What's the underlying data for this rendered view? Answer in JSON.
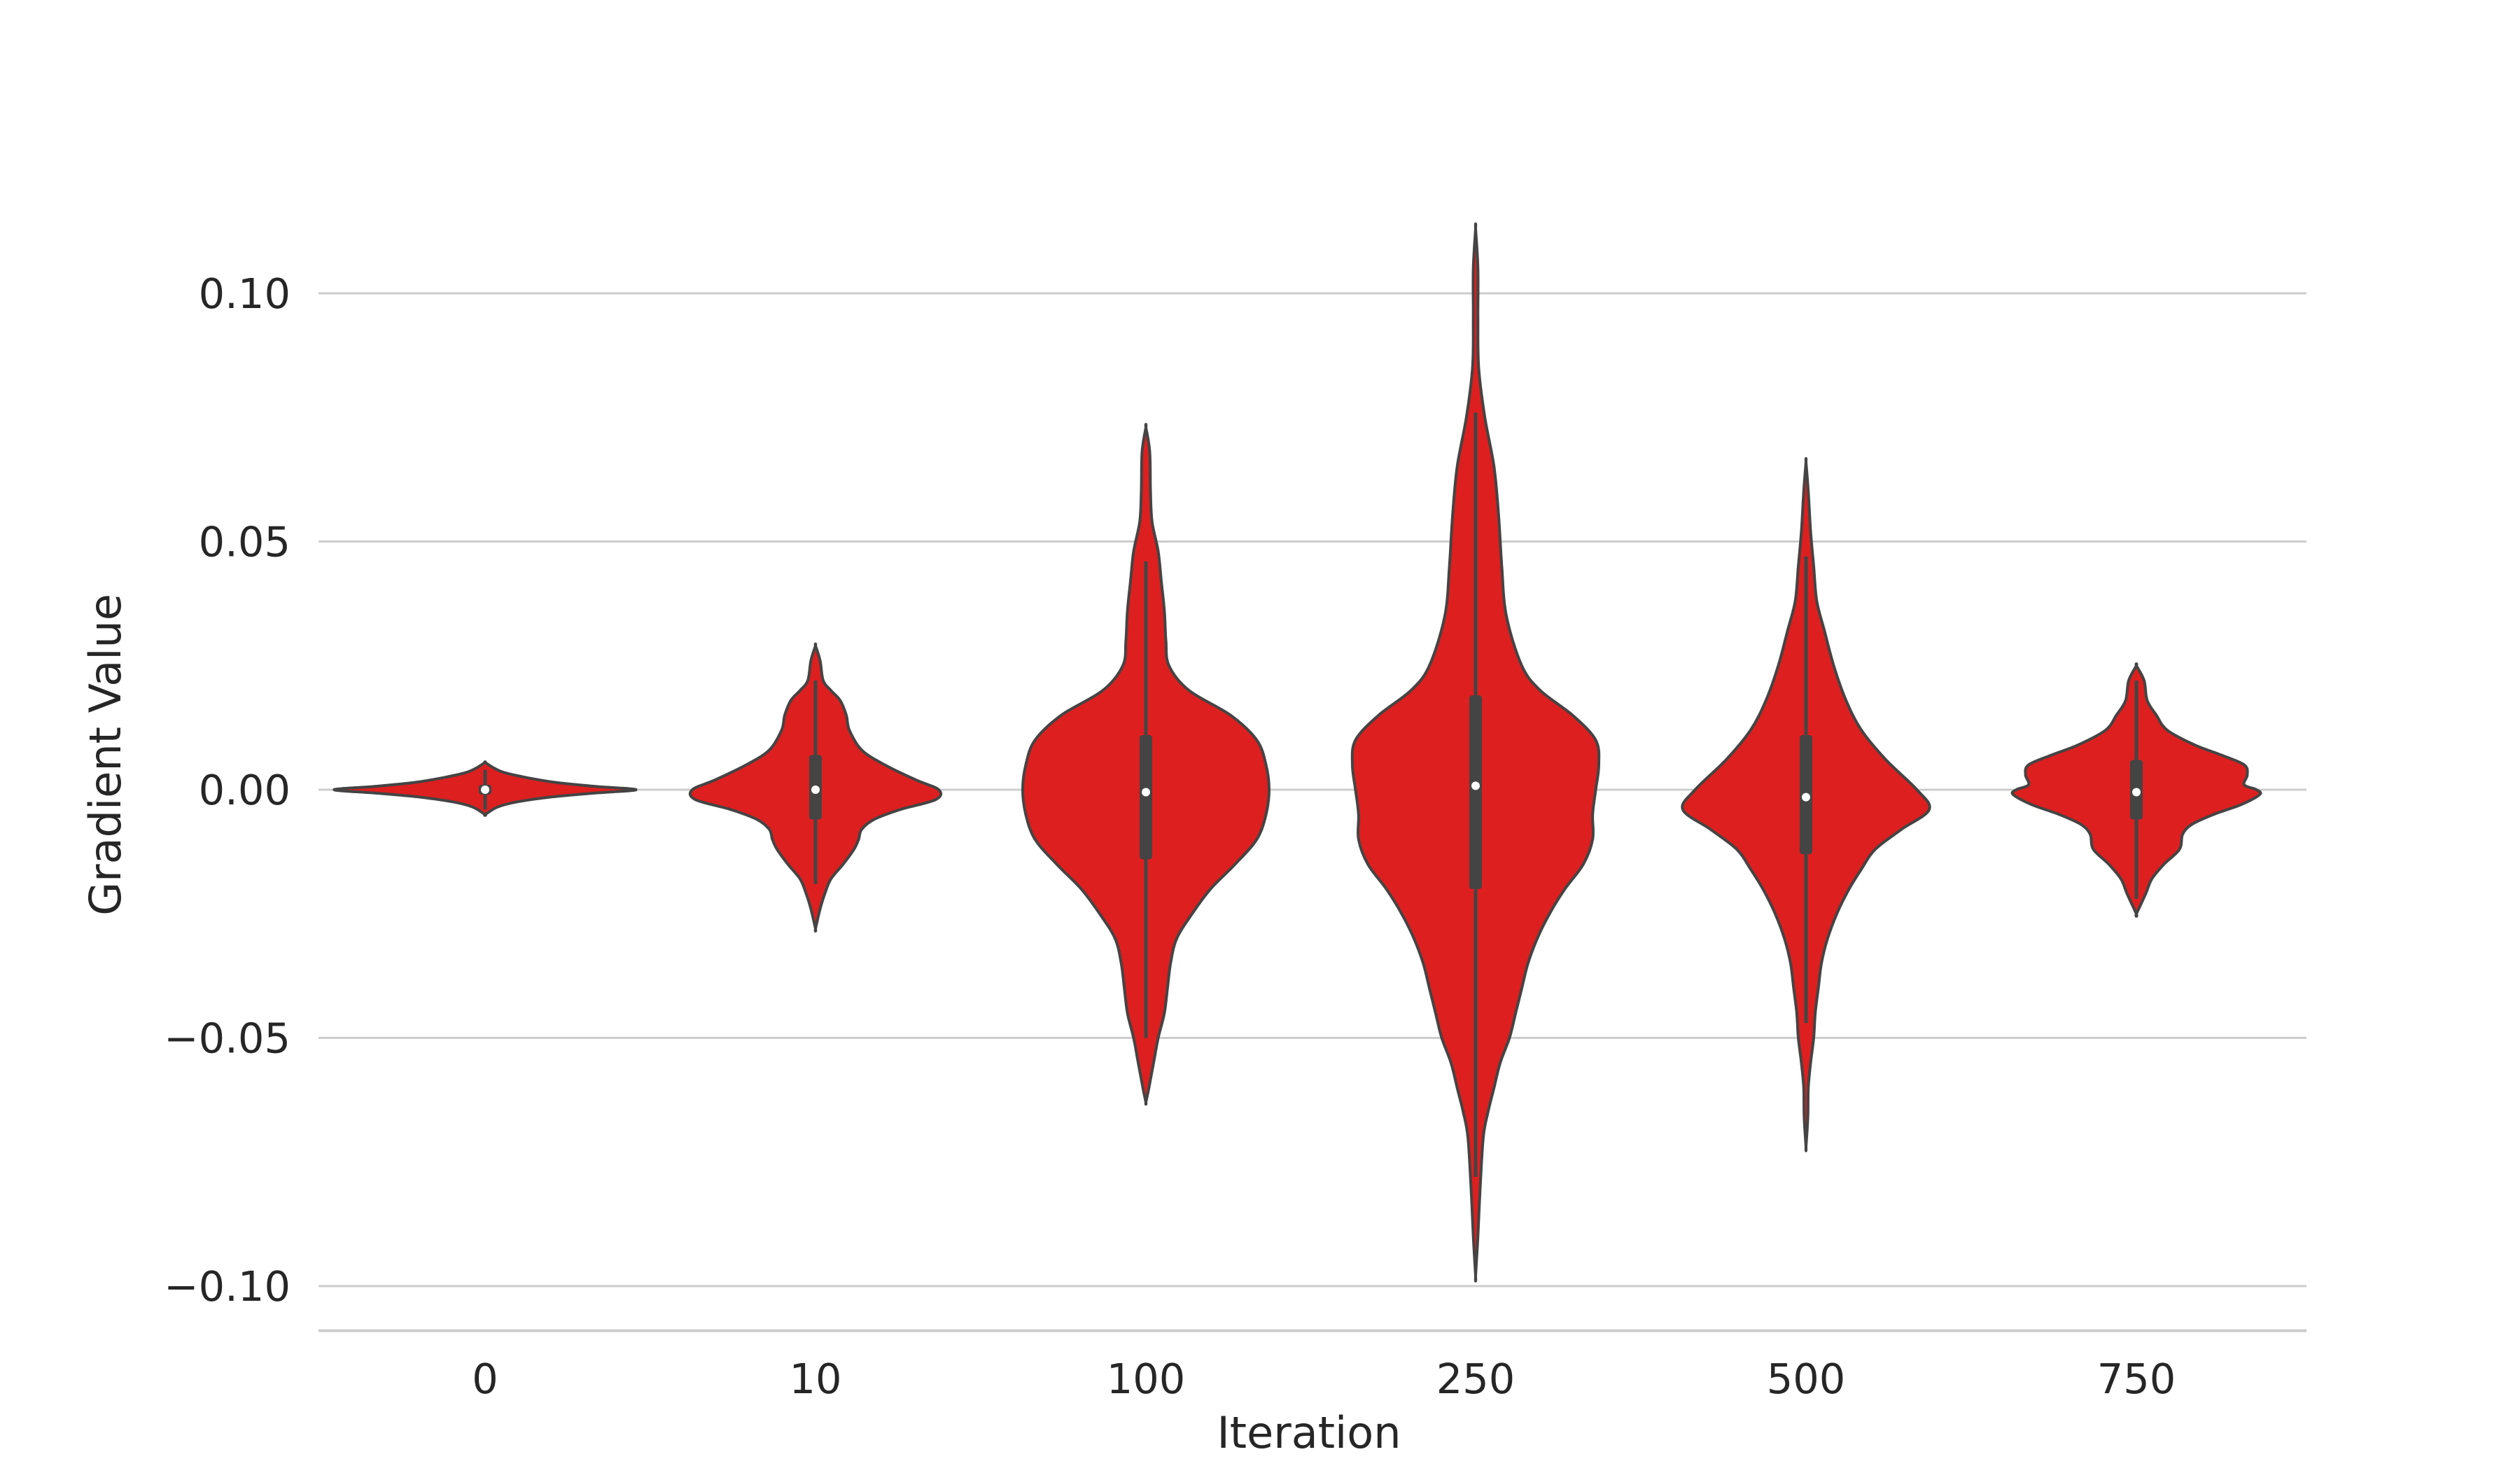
{
  "chart_data": {
    "type": "violin",
    "title": "",
    "xlabel": "Iteration",
    "ylabel": "Gradient Value",
    "categories": [
      "0",
      "10",
      "100",
      "250",
      "500",
      "750"
    ],
    "yticks": [
      0.1,
      0.05,
      0.0,
      -0.05,
      -0.1
    ],
    "ytick_labels": [
      "0.10",
      "0.05",
      "0.00",
      "−0.05",
      "−0.10"
    ],
    "ylim": [
      -0.109,
      0.12
    ],
    "grid": "horizontal",
    "fill_color": "#dd1f1f",
    "line_color": "#444444",
    "grid_color": "#cccccc",
    "violins": [
      {
        "category": "0",
        "ymin": -0.005,
        "ymax": 0.0055,
        "q1": -0.001,
        "median": 0.0,
        "q3": 0.001,
        "whisker_low": -0.004,
        "whisker_high": 0.004,
        "profile": [
          [
            0.0055,
            0.0
          ],
          [
            0.0045,
            0.05
          ],
          [
            0.0035,
            0.12
          ],
          [
            0.0025,
            0.26
          ],
          [
            0.0015,
            0.45
          ],
          [
            0.0007,
            0.7
          ],
          [
            0.0,
            0.98
          ],
          [
            -0.0007,
            0.7
          ],
          [
            -0.0015,
            0.42
          ],
          [
            -0.0025,
            0.2
          ],
          [
            -0.0035,
            0.08
          ],
          [
            -0.005,
            0.0
          ]
        ]
      },
      {
        "category": "10",
        "ymin": -0.028,
        "ymax": 0.029,
        "q1": -0.006,
        "median": 0.0,
        "q3": 0.007,
        "whisker_low": -0.019,
        "whisker_high": 0.022,
        "profile": [
          [
            0.029,
            0.0
          ],
          [
            0.026,
            0.03
          ],
          [
            0.022,
            0.05
          ],
          [
            0.02,
            0.1
          ],
          [
            0.018,
            0.16
          ],
          [
            0.015,
            0.2
          ],
          [
            0.012,
            0.22
          ],
          [
            0.008,
            0.3
          ],
          [
            0.005,
            0.45
          ],
          [
            0.002,
            0.65
          ],
          [
            0.0,
            0.8
          ],
          [
            -0.002,
            0.78
          ],
          [
            -0.004,
            0.55
          ],
          [
            -0.006,
            0.38
          ],
          [
            -0.008,
            0.3
          ],
          [
            -0.01,
            0.28
          ],
          [
            -0.012,
            0.25
          ],
          [
            -0.015,
            0.18
          ],
          [
            -0.018,
            0.1
          ],
          [
            -0.021,
            0.06
          ],
          [
            -0.024,
            0.03
          ],
          [
            -0.028,
            0.0
          ]
        ]
      },
      {
        "category": "100",
        "ymin": -0.063,
        "ymax": 0.073,
        "q1": -0.014,
        "median": -0.0005,
        "q3": 0.011,
        "whisker_low": -0.05,
        "whisker_high": 0.046,
        "profile": [
          [
            0.073,
            0.0
          ],
          [
            0.068,
            0.025
          ],
          [
            0.06,
            0.03
          ],
          [
            0.054,
            0.04
          ],
          [
            0.048,
            0.08
          ],
          [
            0.042,
            0.1
          ],
          [
            0.036,
            0.12
          ],
          [
            0.03,
            0.13
          ],
          [
            0.025,
            0.15
          ],
          [
            0.02,
            0.28
          ],
          [
            0.015,
            0.55
          ],
          [
            0.01,
            0.72
          ],
          [
            0.005,
            0.78
          ],
          [
            0.0,
            0.8
          ],
          [
            -0.005,
            0.78
          ],
          [
            -0.01,
            0.72
          ],
          [
            -0.015,
            0.58
          ],
          [
            -0.02,
            0.42
          ],
          [
            -0.025,
            0.3
          ],
          [
            -0.03,
            0.2
          ],
          [
            -0.035,
            0.16
          ],
          [
            -0.04,
            0.14
          ],
          [
            -0.045,
            0.12
          ],
          [
            -0.05,
            0.08
          ],
          [
            -0.055,
            0.05
          ],
          [
            -0.06,
            0.02
          ],
          [
            -0.063,
            0.0
          ]
        ]
      },
      {
        "category": "250",
        "ymin": -0.098,
        "ymax": 0.113,
        "q1": -0.02,
        "median": 0.0008,
        "q3": 0.019,
        "whisker_low": -0.078,
        "whisker_high": 0.076,
        "profile": [
          [
            0.113,
            0.0
          ],
          [
            0.105,
            0.015
          ],
          [
            0.095,
            0.015
          ],
          [
            0.085,
            0.02
          ],
          [
            0.075,
            0.06
          ],
          [
            0.065,
            0.12
          ],
          [
            0.055,
            0.15
          ],
          [
            0.045,
            0.17
          ],
          [
            0.035,
            0.2
          ],
          [
            0.025,
            0.3
          ],
          [
            0.02,
            0.42
          ],
          [
            0.015,
            0.63
          ],
          [
            0.01,
            0.78
          ],
          [
            0.005,
            0.8
          ],
          [
            0.0,
            0.78
          ],
          [
            -0.005,
            0.76
          ],
          [
            -0.01,
            0.76
          ],
          [
            -0.015,
            0.7
          ],
          [
            -0.02,
            0.58
          ],
          [
            -0.025,
            0.48
          ],
          [
            -0.03,
            0.4
          ],
          [
            -0.035,
            0.34
          ],
          [
            -0.04,
            0.3
          ],
          [
            -0.045,
            0.26
          ],
          [
            -0.05,
            0.22
          ],
          [
            -0.055,
            0.16
          ],
          [
            -0.06,
            0.12
          ],
          [
            -0.065,
            0.08
          ],
          [
            -0.07,
            0.05
          ],
          [
            -0.08,
            0.03
          ],
          [
            -0.09,
            0.015
          ],
          [
            -0.098,
            0.0
          ]
        ]
      },
      {
        "category": "500",
        "ymin": -0.072,
        "ymax": 0.066,
        "q1": -0.013,
        "median": -0.0015,
        "q3": 0.011,
        "whisker_low": -0.047,
        "whisker_high": 0.047,
        "profile": [
          [
            0.066,
            0.0
          ],
          [
            0.06,
            0.015
          ],
          [
            0.052,
            0.03
          ],
          [
            0.045,
            0.05
          ],
          [
            0.038,
            0.07
          ],
          [
            0.032,
            0.12
          ],
          [
            0.025,
            0.18
          ],
          [
            0.018,
            0.26
          ],
          [
            0.012,
            0.36
          ],
          [
            0.006,
            0.52
          ],
          [
            0.0,
            0.72
          ],
          [
            -0.004,
            0.8
          ],
          [
            -0.008,
            0.62
          ],
          [
            -0.012,
            0.45
          ],
          [
            -0.016,
            0.36
          ],
          [
            -0.02,
            0.28
          ],
          [
            -0.025,
            0.2
          ],
          [
            -0.03,
            0.14
          ],
          [
            -0.035,
            0.1
          ],
          [
            -0.04,
            0.08
          ],
          [
            -0.045,
            0.06
          ],
          [
            -0.05,
            0.05
          ],
          [
            -0.055,
            0.03
          ],
          [
            -0.06,
            0.015
          ],
          [
            -0.066,
            0.012
          ],
          [
            -0.072,
            0.0
          ]
        ]
      },
      {
        "category": "750",
        "ymin": -0.025,
        "ymax": 0.025,
        "q1": -0.006,
        "median": -0.0005,
        "q3": 0.006,
        "whisker_low": -0.022,
        "whisker_high": 0.022,
        "profile": [
          [
            0.025,
            0.0
          ],
          [
            0.022,
            0.05
          ],
          [
            0.018,
            0.07
          ],
          [
            0.015,
            0.13
          ],
          [
            0.012,
            0.2
          ],
          [
            0.009,
            0.38
          ],
          [
            0.007,
            0.55
          ],
          [
            0.005,
            0.7
          ],
          [
            0.003,
            0.72
          ],
          [
            0.001,
            0.7
          ],
          [
            0.0,
            0.78
          ],
          [
            -0.001,
            0.8
          ],
          [
            -0.003,
            0.68
          ],
          [
            -0.005,
            0.5
          ],
          [
            -0.007,
            0.36
          ],
          [
            -0.009,
            0.3
          ],
          [
            -0.012,
            0.28
          ],
          [
            -0.015,
            0.18
          ],
          [
            -0.018,
            0.1
          ],
          [
            -0.021,
            0.06
          ],
          [
            -0.025,
            0.0
          ]
        ]
      }
    ]
  }
}
